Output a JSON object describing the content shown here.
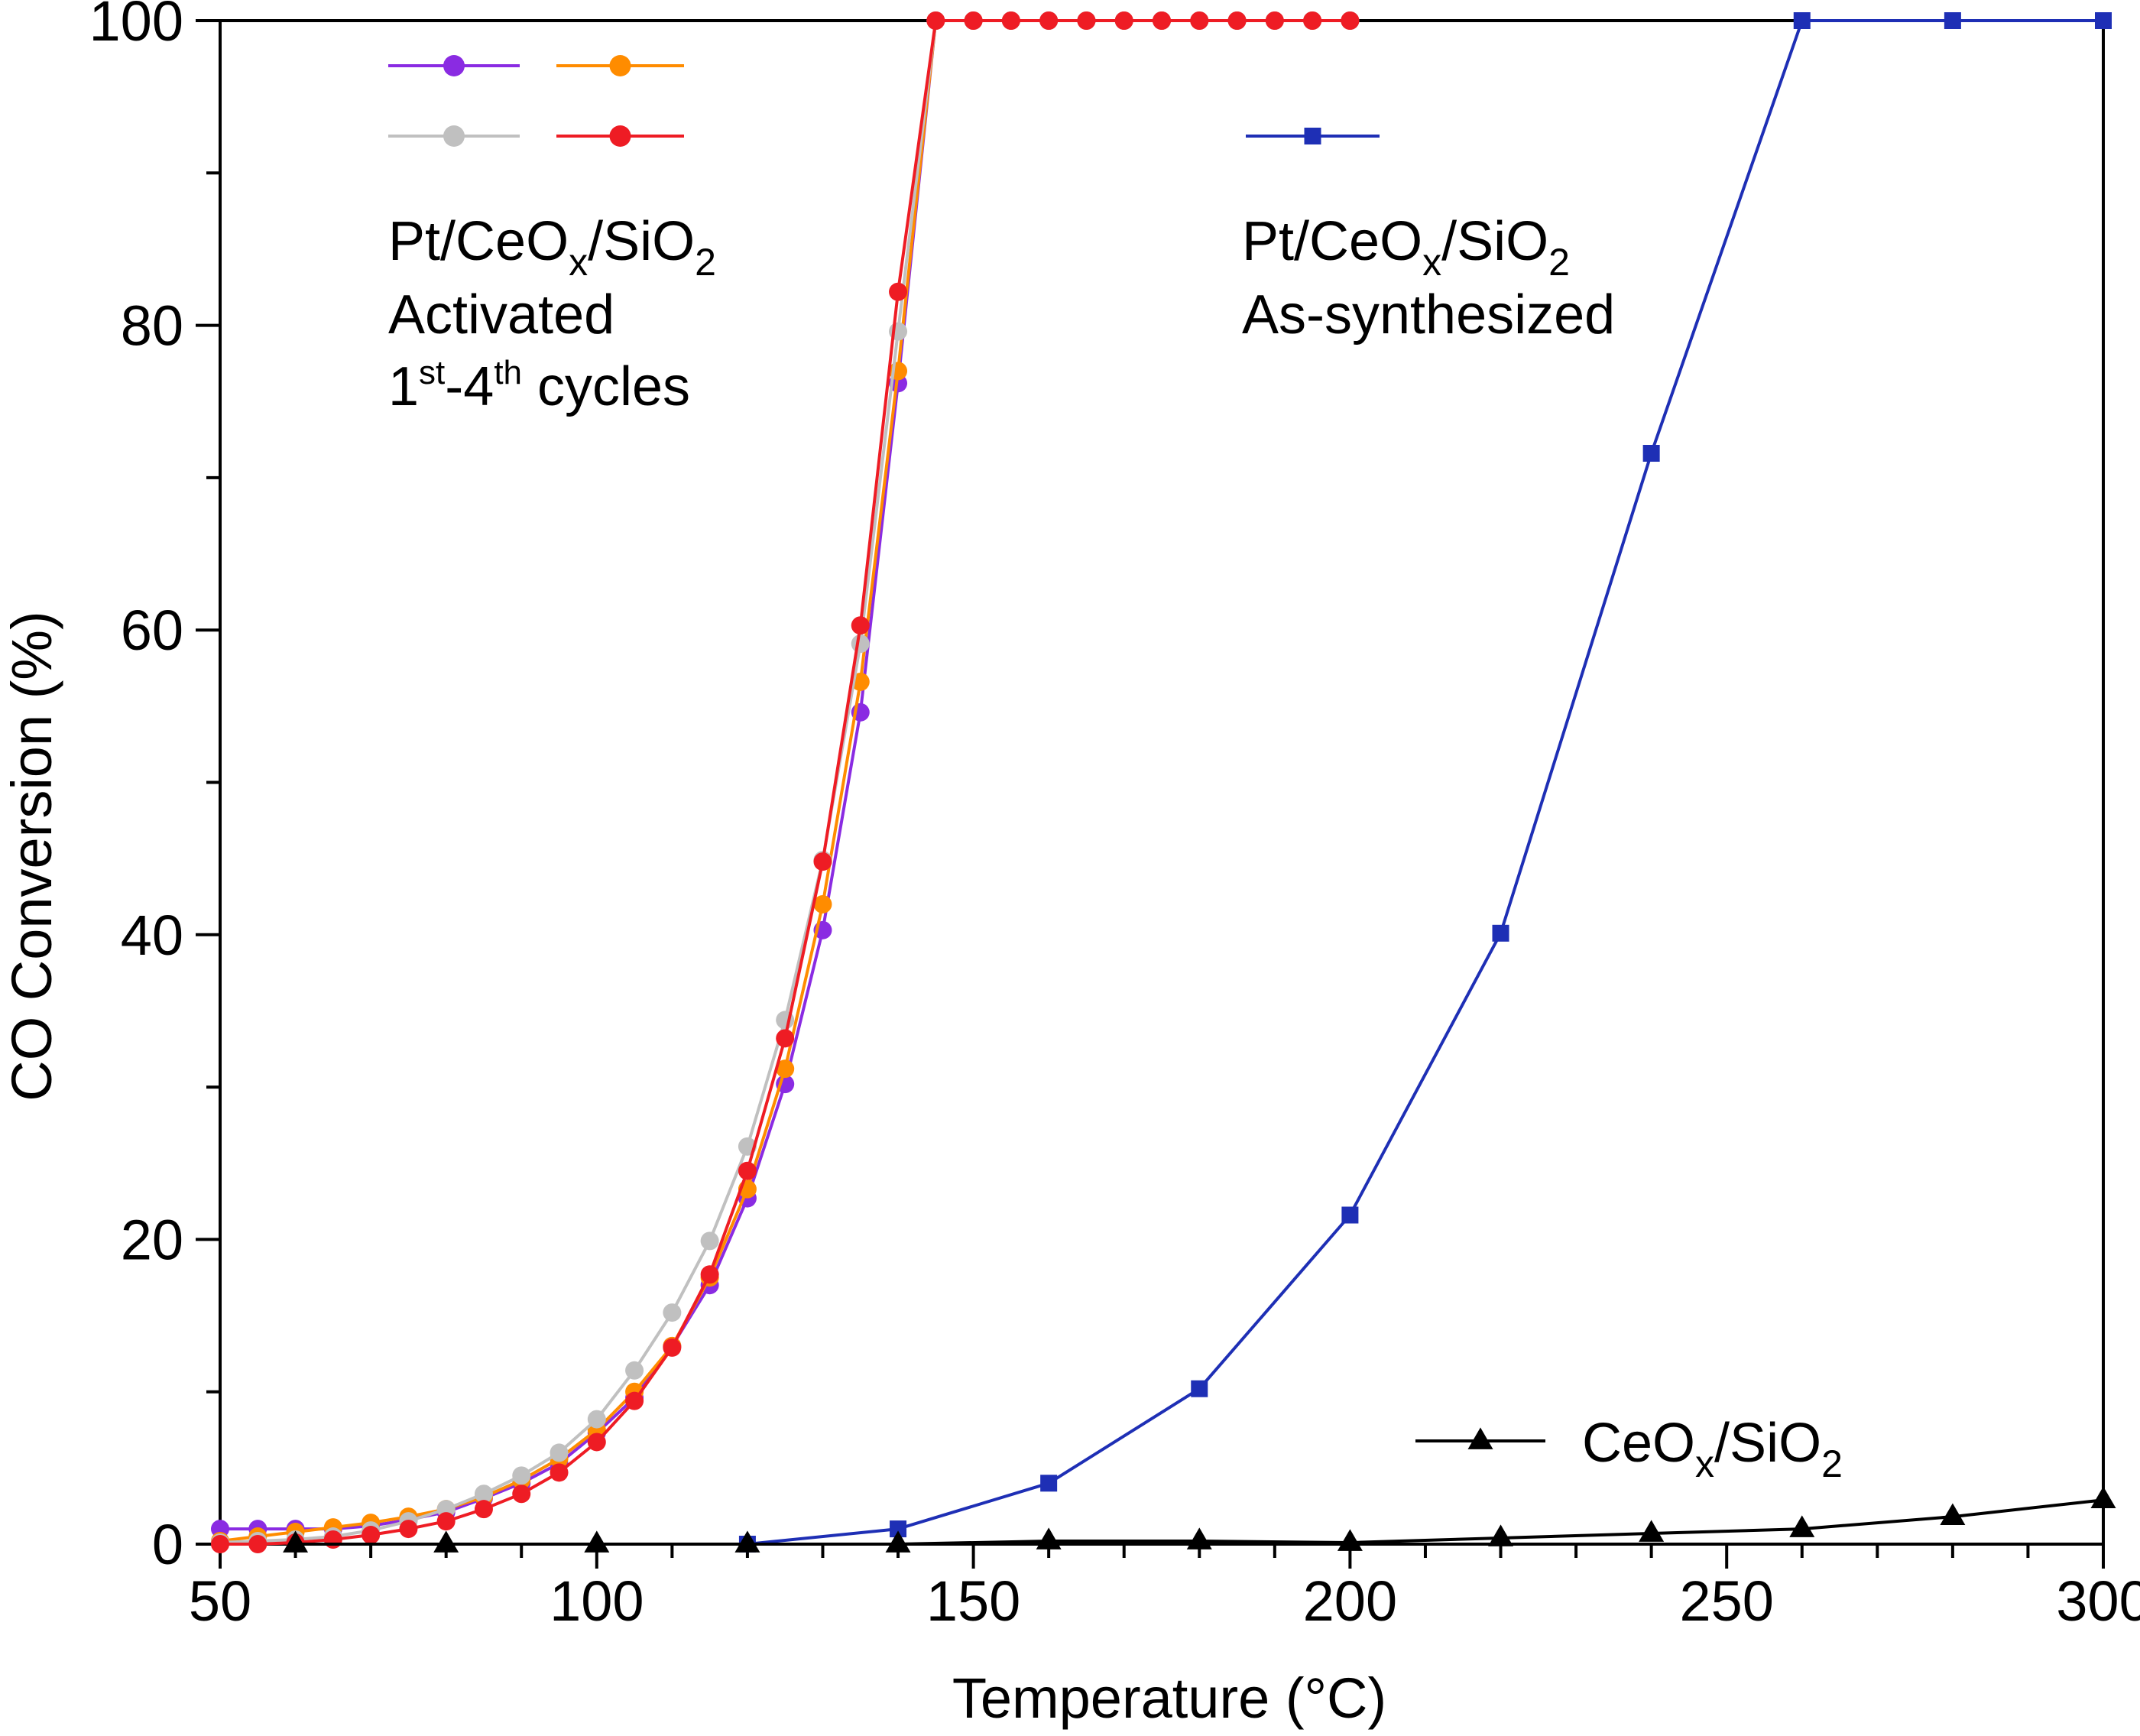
{
  "chart_data": {
    "type": "line",
    "xlabel": "Temperature (°C)",
    "ylabel": "CO Conversion (%)",
    "xlim": [
      50,
      300
    ],
    "ylim": [
      0,
      100
    ],
    "xticks": [
      50,
      100,
      150,
      200,
      250,
      300
    ],
    "yticks": [
      0,
      20,
      40,
      60,
      80,
      100
    ],
    "x_minor_step": 10,
    "y_minor_step": 10,
    "grid": false,
    "annotations": {
      "activated": {
        "l1_a": "Pt/CeO",
        "l1_sub1": "x",
        "l1_b": "/SiO",
        "l1_sub2": "2",
        "l2": "Activated",
        "l3_a": "1",
        "l3_sup1": "st",
        "l3_b": "-4",
        "l3_sup2": "th",
        "l3_c": " cycles"
      },
      "as_synthesized": {
        "l1_a": "Pt/CeO",
        "l1_sub1": "x",
        "l1_b": "/SiO",
        "l1_sub2": "2",
        "l2": "As-synthesized"
      },
      "support": {
        "a": "CeO",
        "sub1": "x",
        "b": "/SiO",
        "sub2": "2"
      }
    },
    "series": [
      {
        "id": "cycle1",
        "color": "#8a2be2",
        "marker": "circle",
        "x": [
          50,
          55,
          60,
          65,
          70,
          75,
          80,
          85,
          90,
          95,
          100,
          105,
          110,
          115,
          120,
          125,
          130,
          135,
          140,
          145,
          150,
          155,
          160,
          165,
          170,
          175,
          180,
          185,
          190,
          195,
          200
        ],
        "y": [
          1,
          1,
          1,
          1,
          1.2,
          1.6,
          2.1,
          3,
          4,
          5.3,
          7.3,
          9.6,
          13,
          17,
          22.7,
          30.2,
          40.3,
          54.6,
          76.2,
          100,
          100,
          100,
          100,
          100,
          100,
          100,
          100,
          100,
          100,
          100,
          100
        ]
      },
      {
        "id": "cycle2",
        "color": "#ff8c00",
        "marker": "circle",
        "x": [
          50,
          55,
          60,
          65,
          70,
          75,
          80,
          85,
          90,
          95,
          100,
          105,
          110,
          115,
          120,
          125,
          130,
          135,
          140,
          145,
          150,
          155,
          160,
          165,
          170,
          175,
          180,
          185,
          190,
          195,
          200
        ],
        "y": [
          0.2,
          0.5,
          0.8,
          1.1,
          1.4,
          1.8,
          2.3,
          3.1,
          4.2,
          5.6,
          7.5,
          10,
          13,
          17.5,
          23.3,
          31.2,
          42,
          56.6,
          77,
          100,
          100,
          100,
          100,
          100,
          100,
          100,
          100,
          100,
          100,
          100,
          100
        ]
      },
      {
        "id": "cycle3",
        "color": "#c0c0c0",
        "marker": "circle",
        "x": [
          50,
          55,
          60,
          65,
          70,
          75,
          80,
          85,
          90,
          95,
          100,
          105,
          110,
          115,
          120,
          125,
          130,
          135,
          140,
          145,
          150,
          155,
          160,
          165,
          170,
          175,
          180,
          185,
          190,
          195,
          200
        ],
        "y": [
          0.1,
          0.2,
          0.3,
          0.5,
          0.9,
          1.5,
          2.3,
          3.3,
          4.5,
          6,
          8.2,
          11.4,
          15.2,
          19.9,
          26.1,
          34.4,
          44.9,
          59.1,
          79.6,
          100,
          100,
          100,
          100,
          100,
          100,
          100,
          100,
          100,
          100,
          100,
          100
        ]
      },
      {
        "id": "cycle4",
        "color": "#ee1c24",
        "marker": "circle",
        "x": [
          50,
          55,
          60,
          65,
          70,
          75,
          80,
          85,
          90,
          95,
          100,
          105,
          110,
          115,
          120,
          125,
          130,
          135,
          140,
          145,
          150,
          155,
          160,
          165,
          170,
          175,
          180,
          185,
          190,
          195,
          200
        ],
        "y": [
          0,
          0,
          0.1,
          0.3,
          0.6,
          1,
          1.5,
          2.3,
          3.3,
          4.7,
          6.7,
          9.4,
          12.9,
          17.7,
          24.5,
          33.2,
          44.8,
          60.3,
          82.2,
          100,
          100,
          100,
          100,
          100,
          100,
          100,
          100,
          100,
          100,
          100,
          100
        ]
      },
      {
        "id": "as_synthesized",
        "color": "#1e2fb5",
        "marker": "square",
        "x": [
          120,
          140,
          160,
          180,
          200,
          220,
          240,
          260,
          280,
          300
        ],
        "y": [
          0,
          1,
          4,
          10.2,
          21.6,
          40.1,
          71.6,
          100,
          100,
          100
        ]
      },
      {
        "id": "support",
        "color": "#000000",
        "marker": "triangle",
        "x": [
          60,
          80,
          100,
          120,
          140,
          160,
          180,
          200,
          220,
          240,
          260,
          280,
          300
        ],
        "y": [
          0,
          0,
          0,
          0,
          0,
          0.2,
          0.2,
          0.1,
          0.4,
          0.7,
          1,
          1.8,
          2.9
        ]
      }
    ],
    "legend": [
      {
        "series": "cycle1",
        "position": "top-left-row1-col1"
      },
      {
        "series": "cycle2",
        "position": "top-left-row1-col2"
      },
      {
        "series": "cycle3",
        "position": "top-left-row2-col1"
      },
      {
        "series": "cycle4",
        "position": "top-left-row2-col2"
      },
      {
        "series": "as_synthesized",
        "position": "top-center"
      },
      {
        "series": "support",
        "position": "bottom-right"
      }
    ]
  }
}
